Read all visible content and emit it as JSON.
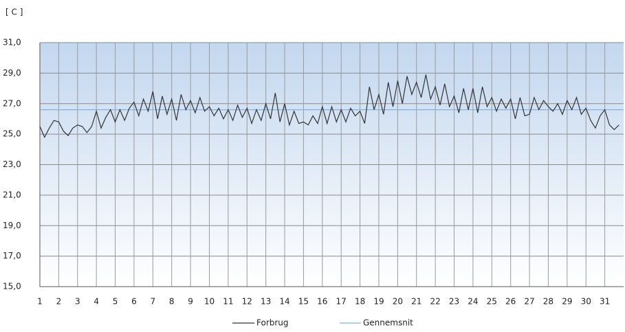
{
  "chart_data": {
    "type": "line",
    "unit_label": "[ C ]",
    "x": [
      1,
      1.25,
      1.5,
      1.75,
      2,
      2.25,
      2.5,
      2.75,
      3,
      3.25,
      3.5,
      3.75,
      4,
      4.25,
      4.5,
      4.75,
      5,
      5.25,
      5.5,
      5.75,
      6,
      6.25,
      6.5,
      6.75,
      7,
      7.25,
      7.5,
      7.75,
      8,
      8.25,
      8.5,
      8.75,
      9,
      9.25,
      9.5,
      9.75,
      10,
      10.25,
      10.5,
      10.75,
      11,
      11.25,
      11.5,
      11.75,
      12,
      12.25,
      12.5,
      12.75,
      13,
      13.25,
      13.5,
      13.75,
      14,
      14.25,
      14.5,
      14.75,
      15,
      15.25,
      15.5,
      15.75,
      16,
      16.25,
      16.5,
      16.75,
      17,
      17.25,
      17.5,
      17.75,
      18,
      18.25,
      18.5,
      18.75,
      19,
      19.25,
      19.5,
      19.75,
      20,
      20.25,
      20.5,
      20.75,
      21,
      21.25,
      21.5,
      21.75,
      22,
      22.25,
      22.5,
      22.75,
      23,
      23.25,
      23.5,
      23.75,
      24,
      24.25,
      24.5,
      24.75,
      25,
      25.25,
      25.5,
      25.75,
      26,
      26.25,
      26.5,
      26.75,
      27,
      27.25,
      27.5,
      27.75,
      28,
      28.25,
      28.5,
      28.75,
      29,
      29.25,
      29.5,
      29.75,
      30,
      30.25,
      30.5,
      30.75,
      31,
      31.25,
      31.5,
      31.75
    ],
    "series": [
      {
        "name": "Forbrug",
        "color": "#333333",
        "values": [
          25.5,
          24.8,
          25.4,
          25.9,
          25.8,
          25.2,
          24.9,
          25.4,
          25.6,
          25.5,
          25.1,
          25.5,
          26.5,
          25.4,
          26.1,
          26.6,
          25.8,
          26.6,
          25.9,
          26.7,
          27.1,
          26.2,
          27.3,
          26.5,
          27.8,
          26.0,
          27.5,
          26.3,
          27.3,
          25.9,
          27.6,
          26.6,
          27.2,
          26.4,
          27.4,
          26.5,
          26.8,
          26.2,
          26.7,
          26.0,
          26.6,
          25.9,
          26.9,
          26.1,
          26.7,
          25.7,
          26.6,
          25.9,
          27.0,
          26.0,
          27.7,
          25.8,
          27.0,
          25.6,
          26.5,
          25.7,
          25.8,
          25.6,
          26.2,
          25.7,
          26.8,
          25.7,
          26.8,
          25.8,
          26.6,
          25.8,
          26.7,
          26.2,
          26.5,
          25.7,
          28.1,
          26.6,
          27.6,
          26.3,
          28.4,
          26.8,
          28.5,
          27.0,
          28.8,
          27.6,
          28.4,
          27.4,
          28.9,
          27.3,
          28.1,
          26.9,
          28.3,
          26.8,
          27.5,
          26.4,
          28.0,
          26.6,
          28.0,
          26.4,
          28.1,
          26.8,
          27.4,
          26.5,
          27.3,
          26.7,
          27.3,
          26.0,
          27.4,
          26.2,
          26.3,
          27.4,
          26.6,
          27.2,
          26.8,
          26.5,
          27.0,
          26.3,
          27.2,
          26.6,
          27.4,
          26.3,
          26.7,
          25.9,
          25.4,
          26.2,
          26.6,
          25.6,
          25.3,
          25.6
        ]
      }
    ],
    "average": {
      "name": "Gennemsnit",
      "value": 26.6,
      "color": "#7fb2e6"
    },
    "xlim": [
      1,
      32
    ],
    "xticks": [
      1,
      2,
      3,
      4,
      5,
      6,
      7,
      8,
      9,
      10,
      11,
      12,
      13,
      14,
      15,
      16,
      17,
      18,
      19,
      20,
      21,
      22,
      23,
      24,
      25,
      26,
      27,
      28,
      29,
      30,
      31
    ],
    "ylim": [
      15,
      31
    ],
    "yticks": [
      {
        "value": 15,
        "label": "15,0"
      },
      {
        "value": 17,
        "label": "17,0"
      },
      {
        "value": 19,
        "label": "19,0"
      },
      {
        "value": 21,
        "label": "21,0"
      },
      {
        "value": 23,
        "label": "23,0"
      },
      {
        "value": 25,
        "label": "25,0"
      },
      {
        "value": 27,
        "label": "27,0"
      },
      {
        "value": 29,
        "label": "29,0"
      },
      {
        "value": 31,
        "label": "31,0"
      }
    ],
    "grid": true
  }
}
